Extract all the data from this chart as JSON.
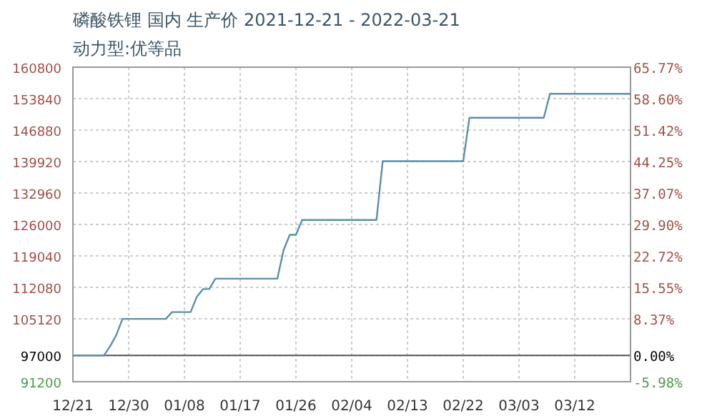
{
  "chart_data": {
    "type": "line",
    "title": "磷酸铁锂 国内 生产价 2021-12-21 - 2022-03-21",
    "subtitle": "动力型:优等品",
    "x": [
      "2021-12-21",
      "2021-12-26",
      "2021-12-27",
      "2021-12-28",
      "2021-12-29",
      "2022-01-05",
      "2022-01-06",
      "2022-01-09",
      "2022-01-10",
      "2022-01-11",
      "2022-01-12",
      "2022-01-13",
      "2022-01-23",
      "2022-01-24",
      "2022-01-25",
      "2022-01-26",
      "2022-01-27",
      "2022-02-08",
      "2022-02-09",
      "2022-02-22",
      "2022-02-23",
      "2022-03-07",
      "2022-03-08",
      "2022-03-21"
    ],
    "series": [
      {
        "color": "#5a90a8",
        "values": [
          97000,
          97000,
          99000,
          101500,
          105100,
          105100,
          106600,
          106600,
          110000,
          111700,
          111700,
          114000,
          114000,
          120300,
          123700,
          123700,
          127000,
          127000,
          140000,
          140000,
          149600,
          149600,
          154900,
          154900
        ]
      }
    ],
    "xlim": [
      "2021-12-21",
      "2022-03-21"
    ],
    "xticks": [
      {
        "value": "2021-12-21",
        "label": "12/21"
      },
      {
        "value": "2021-12-30",
        "label": "12/30"
      },
      {
        "value": "2022-01-08",
        "label": "01/08"
      },
      {
        "value": "2022-01-17",
        "label": "01/17"
      },
      {
        "value": "2022-01-26",
        "label": "01/26"
      },
      {
        "value": "2022-02-04",
        "label": "02/04"
      },
      {
        "value": "2022-02-13",
        "label": "02/13"
      },
      {
        "value": "2022-02-22",
        "label": "02/22"
      },
      {
        "value": "2022-03-03",
        "label": "03/03"
      },
      {
        "value": "2022-03-12",
        "label": "03/12"
      }
    ],
    "ylim": [
      91200,
      160800
    ],
    "yticks": [
      91200,
      97000,
      105120,
      112080,
      119040,
      126000,
      132960,
      139920,
      146880,
      153840,
      160800
    ],
    "y2lim": [
      -5.98,
      65.77
    ],
    "y2ticks": [
      {
        "value": -5.98,
        "label": "-5.98%"
      },
      {
        "value": 0,
        "label": "0.00%"
      },
      {
        "value": 8.37,
        "label": "8.37%"
      },
      {
        "value": 15.55,
        "label": "15.55%"
      },
      {
        "value": 22.72,
        "label": "22.72%"
      },
      {
        "value": 29.9,
        "label": "29.90%"
      },
      {
        "value": 37.07,
        "label": "37.07%"
      },
      {
        "value": 44.25,
        "label": "44.25%"
      },
      {
        "value": 51.42,
        "label": "51.42%"
      },
      {
        "value": 58.6,
        "label": "58.60%"
      },
      {
        "value": 65.77,
        "label": "65.77%"
      }
    ],
    "ref_lines": [
      {
        "axis": "y",
        "value": 97000,
        "color": "#555555"
      }
    ],
    "grid": true
  }
}
